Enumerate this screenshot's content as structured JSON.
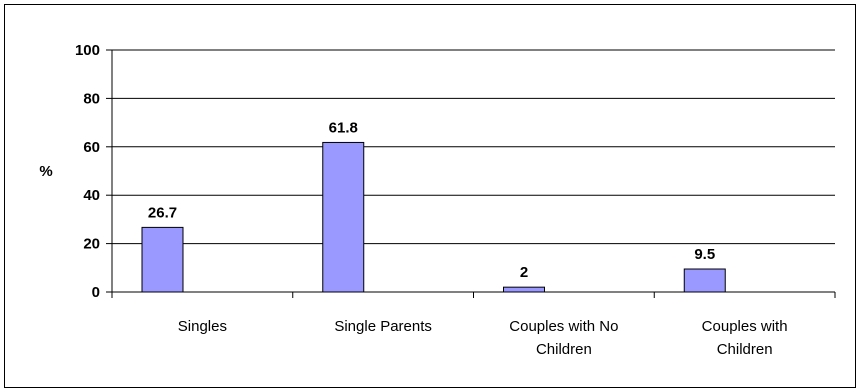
{
  "chart_data": {
    "type": "bar",
    "categories": [
      "Singles",
      "Single Parents",
      "Couples with No Children",
      "Couples with Children"
    ],
    "category_lines": [
      [
        "Singles"
      ],
      [
        "Single Parents"
      ],
      [
        "Couples with No",
        "Children"
      ],
      [
        "Couples with",
        "Children"
      ]
    ],
    "values": [
      26.7,
      61.8,
      2,
      9.5
    ],
    "data_labels": [
      "26.7",
      "61.8",
      "2",
      "9.5"
    ],
    "ylabel": "%",
    "ylim": [
      0,
      100
    ],
    "yticks": [
      0,
      20,
      40,
      60,
      80,
      100
    ],
    "grid": "horizontal",
    "legend": "none",
    "colors": {
      "bar_fill": "#9999FF",
      "bar_stroke": "#000000",
      "grid": "#000000"
    }
  }
}
